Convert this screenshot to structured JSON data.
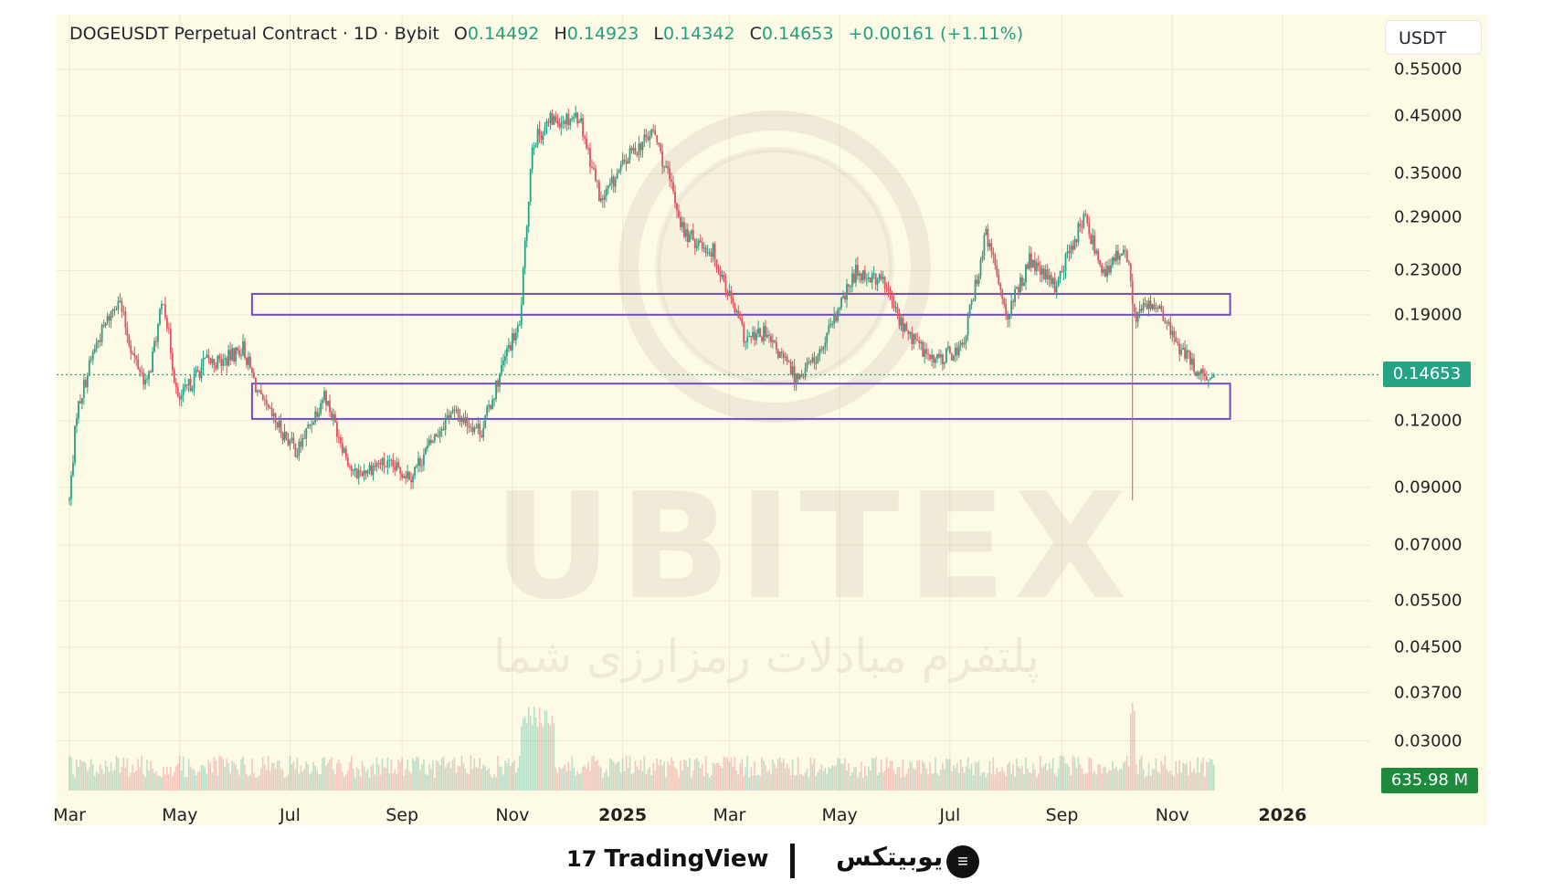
{
  "header": {
    "symbol": "DOGEUSDT Perpetual Contract · 1D · Bybit",
    "o_label": "O",
    "o_value": "0.14492",
    "h_label": "H",
    "h_value": "0.14923",
    "l_label": "L",
    "l_value": "0.14342",
    "c_label": "C",
    "c_value": "0.14653",
    "change": "+0.00161 (+1.11%)"
  },
  "currency": "USDT",
  "price_badge": "0.14653",
  "volume_badge": "635.98 M",
  "watermark": {
    "brand": "UBITEX",
    "tagline": "پلتفرم مبادلات رمزارزی شما"
  },
  "footer": {
    "tradingview": "TradingView",
    "ubitex_fa": "یوبیتکس"
  },
  "colors": {
    "up": "#26a383",
    "down": "#e0525f",
    "zone": "#6f4cc4",
    "background": "#fdfae6"
  },
  "chart_data": {
    "type": "candlestick",
    "title": "DOGEUSDT Perpetual Contract · 1D · Bybit",
    "y_scale": "log",
    "y_ticks": [
      0.55,
      0.45,
      0.35,
      0.29,
      0.23,
      0.19,
      0.12,
      0.09,
      0.07,
      0.055,
      0.045,
      0.037,
      0.03
    ],
    "y_tick_labels": [
      "0.55000",
      "0.45000",
      "0.35000",
      "0.29000",
      "0.23000",
      "0.19000",
      "0.12000",
      "0.09000",
      "0.07000",
      "0.05500",
      "0.04500",
      "0.03700",
      "0.03000"
    ],
    "x_ticks": [
      {
        "label": "Mar",
        "date": "2024-03-01",
        "bold": false
      },
      {
        "label": "May",
        "date": "2024-05-01",
        "bold": false
      },
      {
        "label": "Jul",
        "date": "2024-07-01",
        "bold": false
      },
      {
        "label": "Sep",
        "date": "2024-09-01",
        "bold": false
      },
      {
        "label": "Nov",
        "date": "2024-11-01",
        "bold": false
      },
      {
        "label": "2025",
        "date": "2025-01-01",
        "bold": true
      },
      {
        "label": "Mar",
        "date": "2025-03-01",
        "bold": false
      },
      {
        "label": "May",
        "date": "2025-05-01",
        "bold": false
      },
      {
        "label": "Jul",
        "date": "2025-07-01",
        "bold": false
      },
      {
        "label": "Sep",
        "date": "2025-09-01",
        "bold": false
      },
      {
        "label": "Nov",
        "date": "2025-11-01",
        "bold": false
      },
      {
        "label": "2026",
        "date": "2026-01-01",
        "bold": true
      }
    ],
    "last_price": 0.14653,
    "price_path": [
      [
        "2024-03-01",
        0.085
      ],
      [
        "2024-03-05",
        0.125
      ],
      [
        "2024-03-15",
        0.165
      ],
      [
        "2024-03-28",
        0.205
      ],
      [
        "2024-04-05",
        0.16
      ],
      [
        "2024-04-13",
        0.14
      ],
      [
        "2024-04-22",
        0.205
      ],
      [
        "2024-04-30",
        0.13
      ],
      [
        "2024-05-15",
        0.155
      ],
      [
        "2024-05-25",
        0.155
      ],
      [
        "2024-06-05",
        0.165
      ],
      [
        "2024-06-15",
        0.13
      ],
      [
        "2024-07-05",
        0.105
      ],
      [
        "2024-07-20",
        0.135
      ],
      [
        "2024-08-05",
        0.095
      ],
      [
        "2024-08-20",
        0.1
      ],
      [
        "2024-09-06",
        0.095
      ],
      [
        "2024-09-28",
        0.125
      ],
      [
        "2024-10-15",
        0.115
      ],
      [
        "2024-10-30",
        0.165
      ],
      [
        "2024-11-05",
        0.18
      ],
      [
        "2024-11-12",
        0.4
      ],
      [
        "2024-11-22",
        0.44
      ],
      [
        "2024-12-08",
        0.45
      ],
      [
        "2024-12-20",
        0.31
      ],
      [
        "2025-01-05",
        0.38
      ],
      [
        "2025-01-18",
        0.42
      ],
      [
        "2025-01-28",
        0.33
      ],
      [
        "2025-02-04",
        0.27
      ],
      [
        "2025-02-20",
        0.25
      ],
      [
        "2025-03-10",
        0.17
      ],
      [
        "2025-03-20",
        0.175
      ],
      [
        "2025-04-07",
        0.145
      ],
      [
        "2025-04-20",
        0.16
      ],
      [
        "2025-05-10",
        0.23
      ],
      [
        "2025-05-25",
        0.22
      ],
      [
        "2025-06-05",
        0.18
      ],
      [
        "2025-06-22",
        0.155
      ],
      [
        "2025-07-08",
        0.165
      ],
      [
        "2025-07-21",
        0.27
      ],
      [
        "2025-08-02",
        0.19
      ],
      [
        "2025-08-14",
        0.24
      ],
      [
        "2025-08-28",
        0.215
      ],
      [
        "2025-09-13",
        0.29
      ],
      [
        "2025-09-25",
        0.225
      ],
      [
        "2025-10-06",
        0.26
      ],
      [
        "2025-10-11",
        0.19
      ],
      [
        "2025-10-22",
        0.2
      ],
      [
        "2025-11-05",
        0.165
      ],
      [
        "2025-11-21",
        0.14
      ],
      [
        "2025-11-24",
        0.14653
      ]
    ],
    "wick_outliers": [
      {
        "date": "2025-10-10",
        "low": 0.085
      }
    ],
    "zones": [
      {
        "from": "2024-06-10",
        "to": "2025-12-03",
        "low": 0.19,
        "high": 0.208
      },
      {
        "from": "2024-06-10",
        "to": "2025-12-03",
        "low": 0.121,
        "high": 0.141
      }
    ]
  }
}
